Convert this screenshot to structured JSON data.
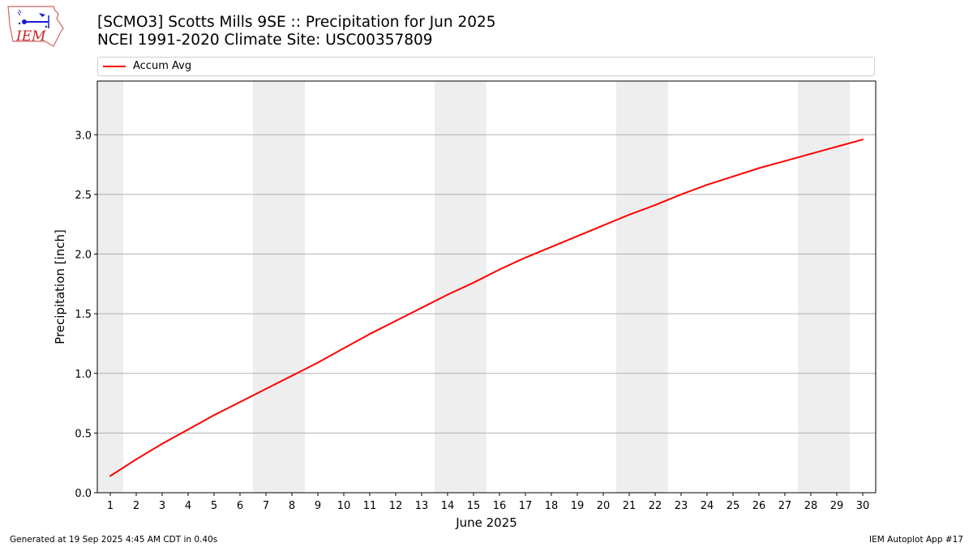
{
  "header": {
    "title_line1": "[SCMO3] Scotts Mills 9SE :: Precipitation for Jun 2025",
    "title_line2": "NCEI 1991-2020 Climate Site: USC00357809"
  },
  "logo": {
    "text": "IEM",
    "icon": "iem-logo-icon"
  },
  "footer": {
    "generated": "Generated at 19 Sep 2025 4:45 AM CDT in 0.40s",
    "app": "IEM Autoplot App #17"
  },
  "colors": {
    "line": "#ff0000",
    "weekend_band": "#eeeeee",
    "grid": "#b0b0b0"
  },
  "chart_data": {
    "type": "line",
    "xlabel": "June 2025",
    "ylabel": "Precipitation [inch]",
    "x": [
      1,
      2,
      3,
      4,
      5,
      6,
      7,
      8,
      9,
      10,
      11,
      12,
      13,
      14,
      15,
      16,
      17,
      18,
      19,
      20,
      21,
      22,
      23,
      24,
      25,
      26,
      27,
      28,
      29,
      30
    ],
    "xlim": [
      0.5,
      30.5
    ],
    "ylim": [
      0,
      3.45
    ],
    "yticks": [
      0.0,
      0.5,
      1.0,
      1.5,
      2.0,
      2.5,
      3.0
    ],
    "ytick_labels": [
      "0.0",
      "0.5",
      "1.0",
      "1.5",
      "2.0",
      "2.5",
      "3.0"
    ],
    "xtick_labels": [
      "1",
      "2",
      "3",
      "4",
      "5",
      "6",
      "7",
      "8",
      "9",
      "10",
      "11",
      "12",
      "13",
      "14",
      "15",
      "16",
      "17",
      "18",
      "19",
      "20",
      "21",
      "22",
      "23",
      "24",
      "25",
      "26",
      "27",
      "28",
      "29",
      "30"
    ],
    "grid": "horizontal",
    "legend_position": "top",
    "weekend_days": [
      1,
      7,
      8,
      14,
      15,
      21,
      22,
      28,
      29
    ],
    "series": [
      {
        "name": "Accum Avg",
        "color": "#ff0000",
        "values": [
          0.14,
          0.28,
          0.41,
          0.53,
          0.65,
          0.76,
          0.87,
          0.98,
          1.09,
          1.21,
          1.33,
          1.44,
          1.55,
          1.66,
          1.76,
          1.87,
          1.97,
          2.06,
          2.15,
          2.24,
          2.33,
          2.41,
          2.5,
          2.58,
          2.65,
          2.72,
          2.78,
          2.84,
          2.9,
          2.96
        ]
      }
    ]
  }
}
